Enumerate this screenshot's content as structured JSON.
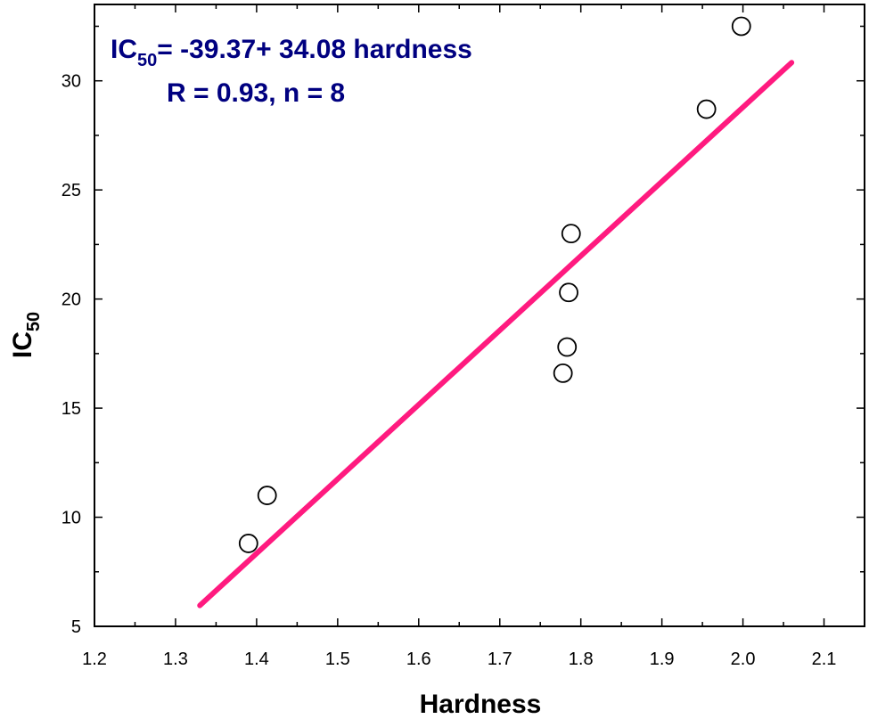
{
  "chart_data": {
    "type": "scatter",
    "x": [
      1.39,
      1.413,
      1.778,
      1.783,
      1.785,
      1.788,
      1.955,
      1.998
    ],
    "y": [
      8.8,
      11.0,
      16.6,
      17.8,
      20.3,
      23.0,
      28.7,
      32.5
    ],
    "fit_line": {
      "intercept": -39.37,
      "slope": 34.08,
      "x_range": [
        1.33,
        2.06
      ]
    },
    "xlabel": "Hardness",
    "ylabel_main": "IC",
    "ylabel_sub": "50",
    "xlim": [
      1.2,
      2.15
    ],
    "ylim": [
      5,
      33.5
    ],
    "xticks": [
      "1.2",
      "1.3",
      "1.4",
      "1.5",
      "1.6",
      "1.7",
      "1.8",
      "1.9",
      "2.0",
      "2.1"
    ],
    "yticks": [
      "5",
      "10",
      "15",
      "20",
      "25",
      "30"
    ],
    "annotation": {
      "line1_main": "IC",
      "line1_sub": "50",
      "line1_rest": "= -39.37+ 34.08 hardness",
      "line2": "R = 0.93, n = 8"
    },
    "colors": {
      "fit_line": "#ff1a7f",
      "annotation": "#000080",
      "axis": "#000000",
      "marker": "#000000"
    },
    "grid": false,
    "legend": "none"
  }
}
